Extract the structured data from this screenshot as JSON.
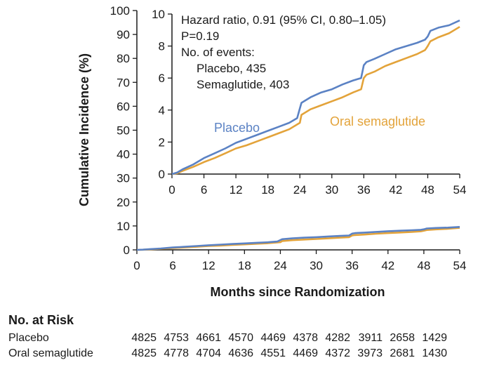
{
  "chart_data": {
    "type": "line",
    "main": {
      "ylabel": "Cumulative Incidence (%)",
      "xlabel": "Months since Randomization",
      "xlim": [
        0,
        54
      ],
      "ylim": [
        0,
        100
      ],
      "xticks": [
        0,
        6,
        12,
        18,
        24,
        30,
        36,
        42,
        48,
        54
      ],
      "yticks": [
        0,
        10,
        20,
        30,
        40,
        50,
        60,
        70,
        80,
        90,
        100
      ]
    },
    "inset": {
      "xlim": [
        0,
        54
      ],
      "ylim": [
        0,
        10
      ],
      "xticks": [
        0,
        6,
        12,
        18,
        24,
        30,
        36,
        42,
        48,
        54
      ],
      "yticks": [
        0,
        2,
        4,
        6,
        8,
        10
      ],
      "annotations": [
        "Hazard ratio, 0.91 (95% CI, 0.80–1.05)",
        "P=0.19",
        "No. of events:",
        "Placebo, 435",
        "Semaglutide, 403"
      ]
    },
    "series": [
      {
        "name": "Placebo",
        "color": "#5b82c4",
        "x": [
          0,
          1,
          2,
          4,
          6,
          8,
          10,
          12,
          14,
          16,
          18,
          20,
          22,
          23.5,
          24,
          24.3,
          26,
          28,
          30,
          32,
          34,
          35.5,
          36,
          36.5,
          38,
          40,
          42,
          44,
          46,
          47.5,
          48,
          48.5,
          50,
          52,
          54
        ],
        "y": [
          0,
          0.1,
          0.3,
          0.6,
          1.0,
          1.3,
          1.6,
          1.95,
          2.2,
          2.45,
          2.7,
          2.95,
          3.2,
          3.5,
          4.1,
          4.45,
          4.8,
          5.1,
          5.3,
          5.6,
          5.85,
          6.0,
          6.8,
          7.0,
          7.2,
          7.5,
          7.8,
          8.0,
          8.2,
          8.4,
          8.6,
          8.95,
          9.15,
          9.3,
          9.6
        ]
      },
      {
        "name": "Oral semaglutide",
        "color": "#e3a33a",
        "x": [
          0,
          1,
          2,
          4,
          6,
          8,
          10,
          12,
          14,
          16,
          18,
          20,
          22,
          24,
          24.3,
          26,
          28,
          30,
          32,
          34,
          35.5,
          36,
          36.5,
          38,
          40,
          42,
          44,
          46,
          47.5,
          48,
          48.5,
          50,
          52,
          54
        ],
        "y": [
          0,
          0.05,
          0.2,
          0.45,
          0.75,
          1.0,
          1.3,
          1.6,
          1.8,
          2.05,
          2.3,
          2.55,
          2.8,
          3.2,
          3.7,
          4.05,
          4.3,
          4.55,
          4.8,
          5.1,
          5.3,
          6.0,
          6.2,
          6.4,
          6.75,
          7.0,
          7.25,
          7.5,
          7.75,
          8.0,
          8.3,
          8.55,
          8.8,
          9.2
        ]
      }
    ]
  },
  "risk_table": {
    "title": "No. at Risk",
    "rows": [
      {
        "label": "Placebo",
        "values": [
          "4825",
          "4753",
          "4661",
          "4570",
          "4469",
          "4378",
          "4282",
          "3911",
          "2658",
          "1429"
        ]
      },
      {
        "label": "Oral semaglutide",
        "values": [
          "4825",
          "4778",
          "4704",
          "4636",
          "4551",
          "4469",
          "4372",
          "3973",
          "2681",
          "1430"
        ]
      }
    ]
  }
}
